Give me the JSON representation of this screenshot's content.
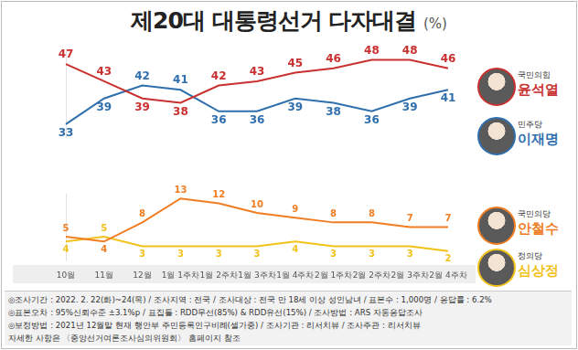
{
  "title": "제20대 대통령선거 다자대결",
  "title_unit": "(%)",
  "chart_data": [
    {
      "type": "line",
      "categories": [
        "10월",
        "11월",
        "12월",
        "1월 1주차",
        "1월 2주차",
        "1월 3주차",
        "1월 4주차",
        "2월 1주차",
        "2월 2주차",
        "2월 3주차",
        "2월 4주차"
      ],
      "series": [
        {
          "name": "윤석열",
          "party": "국민의힘",
          "color": "#c8312f",
          "marker": "none",
          "line_style": "solid",
          "values": [
            47,
            43,
            39,
            38,
            42,
            43,
            45,
            46,
            48,
            48,
            46
          ]
        },
        {
          "name": "이재명",
          "party": "민주당",
          "color": "#2f6fae",
          "marker": "none",
          "line_style": "solid",
          "values": [
            33,
            39,
            42,
            41,
            36,
            36,
            39,
            38,
            36,
            39,
            41
          ]
        }
      ],
      "ylim": [
        30,
        50
      ],
      "grid": false,
      "data_labels": true,
      "tick_labels": false,
      "legend": "right"
    },
    {
      "type": "line",
      "categories": [
        "10월",
        "11월",
        "12월",
        "1월 1주차",
        "1월 2주차",
        "1월 3주차",
        "1월 4주차",
        "2월 1주차",
        "2월 2주차",
        "2월 3주차",
        "2월 4주차"
      ],
      "series": [
        {
          "name": "안철수",
          "party": "국민의당",
          "color": "#f07d22",
          "marker": "none",
          "line_style": "solid",
          "values": [
            5,
            4,
            8,
            13,
            12,
            10,
            9,
            8,
            8,
            7,
            7
          ]
        },
        {
          "name": "심상정",
          "party": "정의당",
          "color": "#f2c21b",
          "marker": "none",
          "line_style": "solid",
          "values": [
            4,
            5,
            3,
            3,
            3,
            3,
            4,
            3,
            3,
            3,
            2
          ]
        }
      ],
      "ylim": [
        0,
        14
      ],
      "grid": false,
      "data_labels": true,
      "tick_labels": "x",
      "legend": "right"
    }
  ],
  "notes": [
    "◎조사기간 : 2022. 2. 22(화)~24(목) / 조사지역 : 전국 / 조사대상 : 전국 만 18세 이상 성인남녀 / 표본수 : 1,000명 / 응답률 : 6.2%",
    "◎표본오차 : 95%신뢰수준 ±3.1%p / 표집틀 : RDD무선(85%) & RDD유선(15%) / 조사방법 : ARS 자동응답조사",
    "◎보정방법 : 2021년 12월말 현재 행안부 주민등록인구비례(셀가중) / 조사기관 : 리서치뷰 / 조사주관 : 리서치뷰",
    "자세한 사항은 〈중앙선거여론조사심의위원회〉 홈페이지 참조"
  ]
}
